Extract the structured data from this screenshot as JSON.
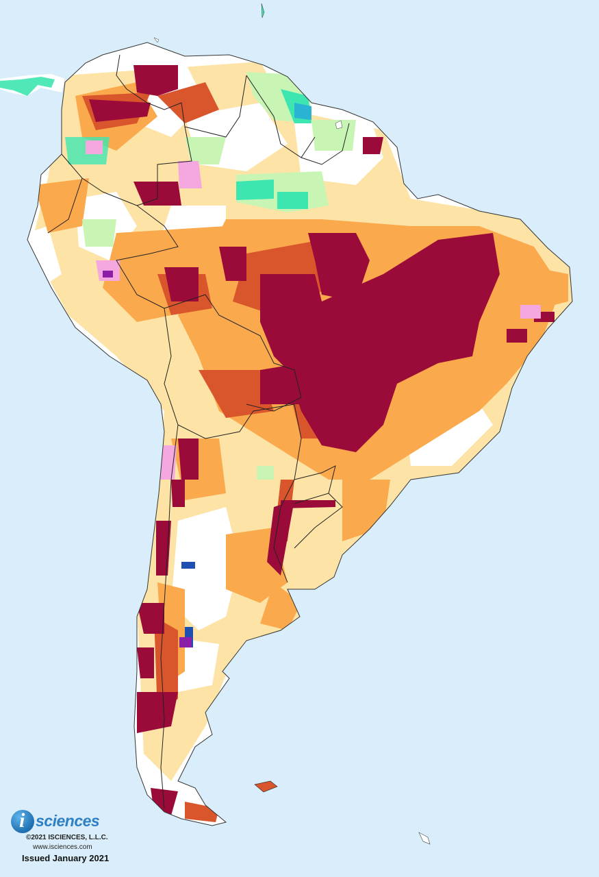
{
  "map": {
    "region": "South America",
    "background_color": "#d9eefa",
    "land_color": "#ffffff",
    "border_color": "#222222",
    "palette": {
      "extreme_deficit": "#9b0b3a",
      "severe_deficit": "#d9552c",
      "moderate_deficit": "#fba94d",
      "abnormal_deficit": "#fde2a0",
      "surplus_mild": "#c8f5b4",
      "surplus_moderate": "#3de6b0",
      "surplus_severe": "#2bb3d4",
      "surplus_extreme": "#1f4fb0",
      "both": "#f5a8e0",
      "both_severe": "#8b1fa8"
    }
  },
  "logo": {
    "icon": "isciences-circle-i-icon",
    "letter": "i",
    "word": "sciences"
  },
  "footer": {
    "copyright": "©2021 ISCIENCES, L.L.C.",
    "website": "www.isciences.com",
    "issued": "Issued January 2021"
  }
}
